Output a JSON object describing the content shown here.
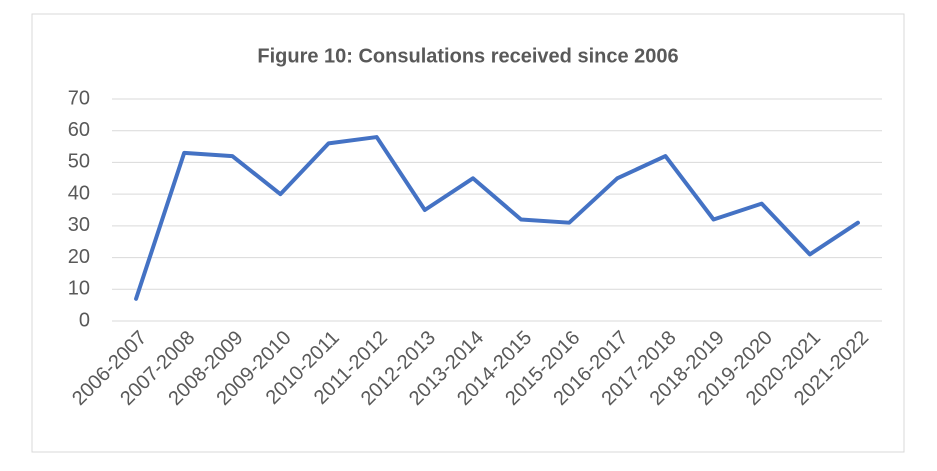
{
  "chart_data": {
    "type": "line",
    "title": "Figure 10: Consulations received since 2006",
    "categories": [
      "2006-2007",
      "2007-2008",
      "2008-2009",
      "2009-2010",
      "2010-2011",
      "2011-2012",
      "2012-2013",
      "2013-2014",
      "2014-2015",
      "2015-2016",
      "2016-2017",
      "2017-2018",
      "2018-2019",
      "2019-2020",
      "2020-2021",
      "2021-2022"
    ],
    "values": [
      7,
      53,
      52,
      40,
      56,
      58,
      35,
      45,
      32,
      31,
      45,
      52,
      32,
      37,
      21,
      31
    ],
    "color": "#4472c4",
    "ylim": [
      0,
      70
    ],
    "yticks": [
      0,
      10,
      20,
      30,
      40,
      50,
      60,
      70
    ],
    "grid": true
  }
}
